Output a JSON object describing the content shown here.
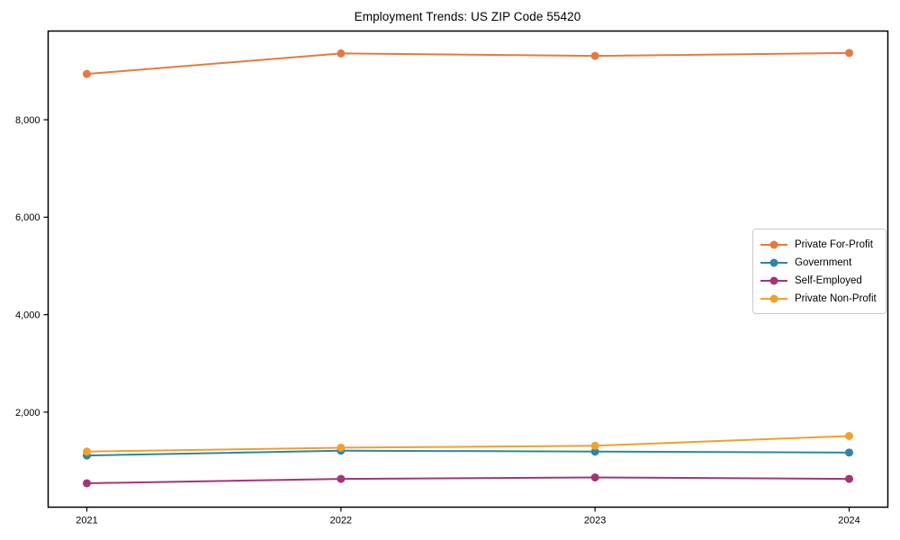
{
  "title": "Employment Trends: US ZIP Code 55420",
  "chart_data": {
    "type": "line",
    "title": "Employment Trends: US ZIP Code 55420",
    "x": [
      2021,
      2022,
      2023,
      2024
    ],
    "xtick_labels": [
      "2021",
      "2022",
      "2023",
      "2024"
    ],
    "series": [
      {
        "name": "Private For-Profit",
        "color": "#e67940",
        "values": [
          8940,
          9360,
          9310,
          9370
        ]
      },
      {
        "name": "Government",
        "color": "#2e86a1",
        "values": [
          1110,
          1210,
          1190,
          1170
        ]
      },
      {
        "name": "Self-Employed",
        "color": "#a33577",
        "values": [
          540,
          630,
          660,
          630
        ]
      },
      {
        "name": "Private Non-Profit",
        "color": "#f0a02c",
        "values": [
          1190,
          1270,
          1310,
          1510
        ]
      }
    ],
    "xlabel": "",
    "ylabel": "",
    "ylim": [
      50,
      9820
    ],
    "yticks": [
      2000,
      4000,
      6000,
      8000
    ],
    "ytick_labels": [
      "2,000",
      "4,000",
      "6,000",
      "8,000"
    ],
    "grid": false,
    "legend_position": "center-right",
    "marker": "circle",
    "axis_color": "#000000",
    "background_color": "#ffffff"
  }
}
